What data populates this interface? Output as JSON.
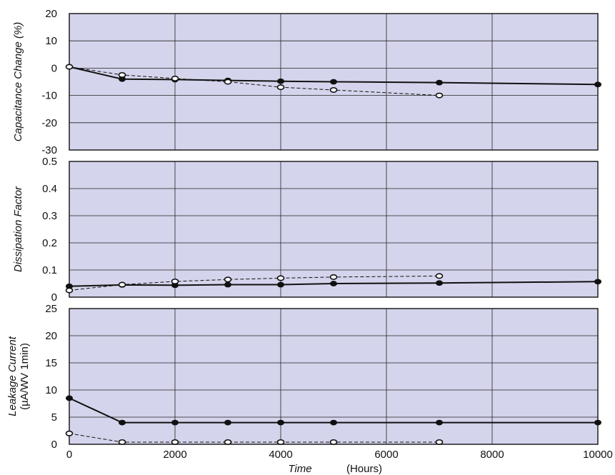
{
  "chart_data": [
    {
      "type": "line",
      "ylabel": "Capacitance Change (%)",
      "ylim": [
        -30,
        20
      ],
      "yticks": [
        "20",
        "10",
        "0",
        "-10",
        "-20",
        "-30"
      ],
      "xlim": [
        0,
        10000
      ],
      "grid": true,
      "series": [
        {
          "style": "solid-filled-markers",
          "x": [
            0,
            1000,
            2000,
            3000,
            4000,
            5000,
            7000,
            10000
          ],
          "y": [
            0.5,
            -4,
            -4.2,
            -4.5,
            -4.8,
            -5,
            -5.3,
            -6
          ]
        },
        {
          "style": "dashed-open-markers",
          "x": [
            0,
            1000,
            2000,
            3000,
            4000,
            5000,
            7000
          ],
          "y": [
            0.5,
            -2.5,
            -3.8,
            -5,
            -7,
            -8,
            -10
          ]
        }
      ]
    },
    {
      "type": "line",
      "ylabel": "Dissipation Factor",
      "ylim": [
        0,
        0.5
      ],
      "yticks": [
        "0.5",
        "0.4",
        "0.3",
        "0.2",
        "0.1",
        "0"
      ],
      "xlim": [
        0,
        10000
      ],
      "grid": true,
      "series": [
        {
          "style": "solid-filled-markers",
          "x": [
            0,
            1000,
            2000,
            3000,
            4000,
            5000,
            7000,
            10000
          ],
          "y": [
            0.04,
            0.045,
            0.044,
            0.046,
            0.046,
            0.05,
            0.052,
            0.057
          ]
        },
        {
          "style": "dashed-open-markers",
          "x": [
            0,
            1000,
            2000,
            3000,
            4000,
            5000,
            7000
          ],
          "y": [
            0.025,
            0.046,
            0.058,
            0.065,
            0.07,
            0.074,
            0.078
          ]
        }
      ]
    },
    {
      "type": "line",
      "ylabel": "Leakage Current",
      "ylabel2": "(µA/WV 1min)",
      "ylim": [
        0,
        25
      ],
      "yticks": [
        "25",
        "20",
        "15",
        "10",
        "5",
        "0"
      ],
      "xlim": [
        0,
        10000
      ],
      "xticks": [
        "0",
        "2000",
        "4000",
        "6000",
        "8000",
        "10000"
      ],
      "xlabel": "Time",
      "xlabel_unit": "(Hours)",
      "grid": true,
      "series": [
        {
          "style": "solid-filled-markers",
          "x": [
            0,
            1000,
            2000,
            3000,
            4000,
            5000,
            7000,
            10000
          ],
          "y": [
            8.5,
            4,
            4,
            4,
            4,
            4,
            4,
            4
          ]
        },
        {
          "style": "dashed-open-markers",
          "x": [
            0,
            1000,
            2000,
            3000,
            4000,
            5000,
            7000
          ],
          "y": [
            2,
            0.4,
            0.4,
            0.4,
            0.4,
            0.4,
            0.4
          ]
        }
      ]
    }
  ],
  "colors": {
    "plot_bg": "#d4d4ec",
    "line": "#111111",
    "grid": "#222222"
  }
}
